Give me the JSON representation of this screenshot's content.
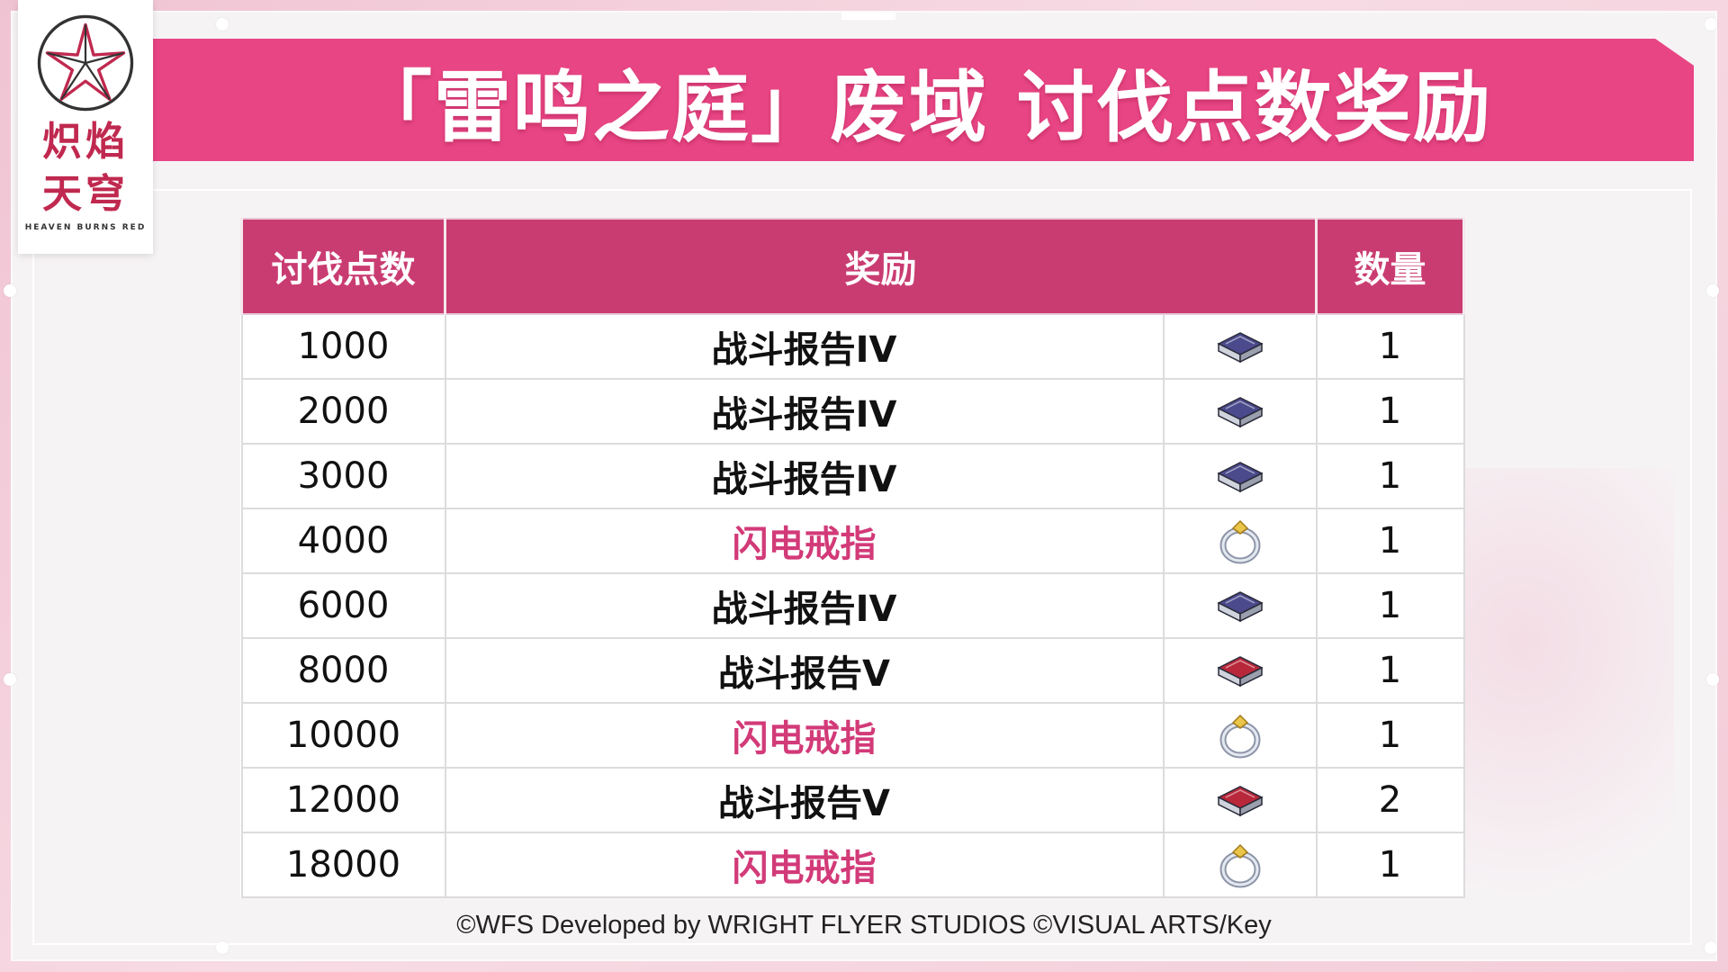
{
  "title": "「雷鸣之庭」废域 讨伐点数奖励",
  "logo": {
    "text_line1": "炽焰",
    "text_line2": "天穹",
    "subtitle": "HEAVEN BURNS RED",
    "emblem_icon": "star-flower-emblem-icon"
  },
  "table": {
    "headers": {
      "points": "讨伐点数",
      "reward": "奖励",
      "quantity": "数量"
    },
    "rows": [
      {
        "points": "1000",
        "reward": "战斗报告IV",
        "icon": "battle-report-iv-icon",
        "quantity": "1"
      },
      {
        "points": "2000",
        "reward": "战斗报告IV",
        "icon": "battle-report-iv-icon",
        "quantity": "1"
      },
      {
        "points": "3000",
        "reward": "战斗报告IV",
        "icon": "battle-report-iv-icon",
        "quantity": "1"
      },
      {
        "points": "4000",
        "reward": "闪电戒指",
        "icon": "lightning-ring-icon",
        "quantity": "1"
      },
      {
        "points": "6000",
        "reward": "战斗报告IV",
        "icon": "battle-report-iv-icon",
        "quantity": "1"
      },
      {
        "points": "8000",
        "reward": "战斗报告V",
        "icon": "battle-report-v-icon",
        "quantity": "1"
      },
      {
        "points": "10000",
        "reward": "闪电戒指",
        "icon": "lightning-ring-icon",
        "quantity": "1"
      },
      {
        "points": "12000",
        "reward": "战斗报告V",
        "icon": "battle-report-v-icon",
        "quantity": "2"
      },
      {
        "points": "18000",
        "reward": "闪电戒指",
        "icon": "lightning-ring-icon",
        "quantity": "1"
      }
    ]
  },
  "footer": "©WFS Developed by WRIGHT FLYER STUDIOS ©VISUAL ARTS/Key",
  "colors": {
    "banner": "#e84584",
    "header": "#c93c71",
    "ring_text": "#d23a78",
    "report_iv": "#4b4a8c",
    "report_v": "#b8283a"
  }
}
